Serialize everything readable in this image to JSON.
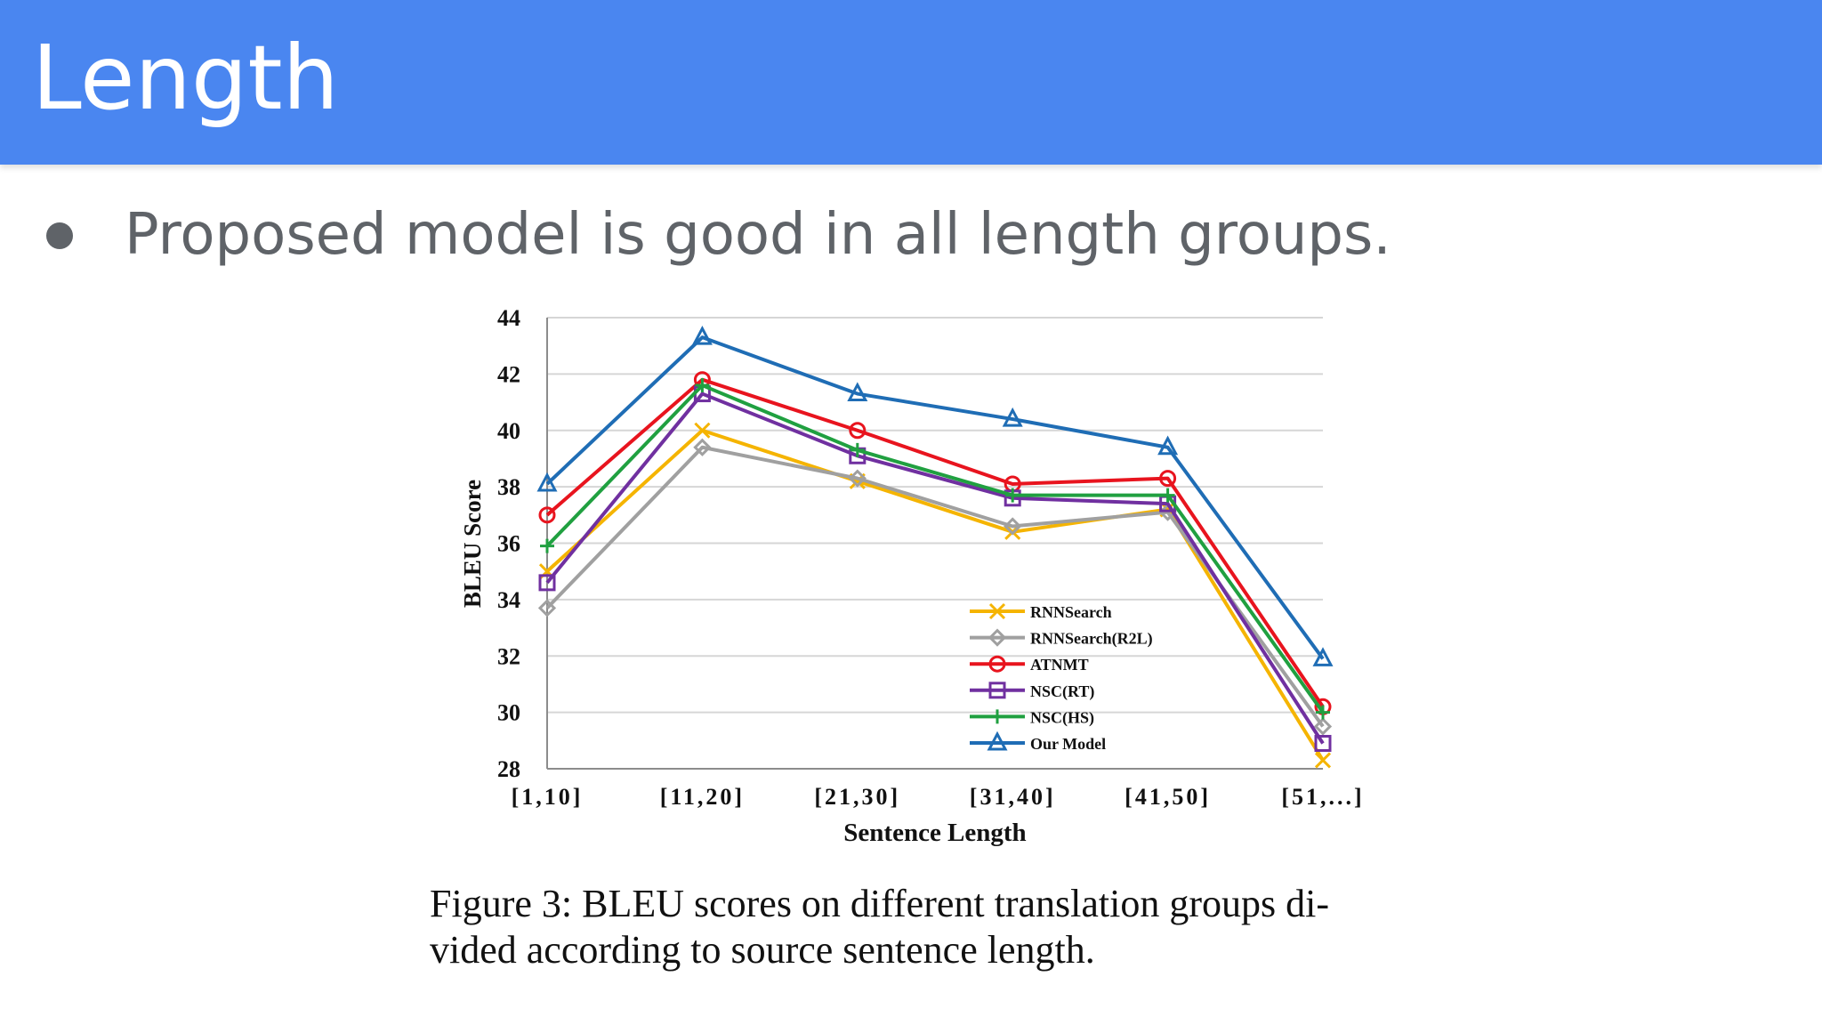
{
  "slide": {
    "title": "Length",
    "bullet": "Proposed model is good in all length groups.",
    "caption_line1": "Figure 3:  BLEU scores on different translation groups di-",
    "caption_line2": "vided according to source sentence length."
  },
  "chart_data": {
    "type": "line",
    "xlabel": "Sentence Length",
    "ylabel": "BLEU Score",
    "categories": [
      "[1,10]",
      "[11,20]",
      "[21,30]",
      "[31,40]",
      "[41,50]",
      "[51,...]"
    ],
    "ylim": [
      28,
      44
    ],
    "yticks": [
      28,
      30,
      32,
      34,
      36,
      38,
      40,
      42,
      44
    ],
    "grid": true,
    "legend_position": "lower-right",
    "series": [
      {
        "name": "RNNSearch",
        "color": "#f5b400",
        "marker": "x",
        "values": [
          35.0,
          40.0,
          38.2,
          36.4,
          37.2,
          28.3
        ]
      },
      {
        "name": "RNNSearch(R2L)",
        "color": "#a0a0a0",
        "marker": "diamond",
        "values": [
          33.7,
          39.4,
          38.3,
          36.6,
          37.1,
          29.5
        ]
      },
      {
        "name": "ATNMT",
        "color": "#e8141e",
        "marker": "circle",
        "values": [
          37.0,
          41.8,
          40.0,
          38.1,
          38.3,
          30.2
        ]
      },
      {
        "name": "NSC(RT)",
        "color": "#7030a0",
        "marker": "square",
        "values": [
          34.6,
          41.3,
          39.1,
          37.6,
          37.4,
          28.9
        ]
      },
      {
        "name": "NSC(HS)",
        "color": "#20a040",
        "marker": "plus",
        "values": [
          35.9,
          41.6,
          39.3,
          37.7,
          37.7,
          30.0
        ]
      },
      {
        "name": "Our Model",
        "color": "#1f6db5",
        "marker": "triangle",
        "values": [
          38.1,
          43.3,
          41.3,
          40.4,
          39.4,
          31.9
        ]
      }
    ]
  }
}
